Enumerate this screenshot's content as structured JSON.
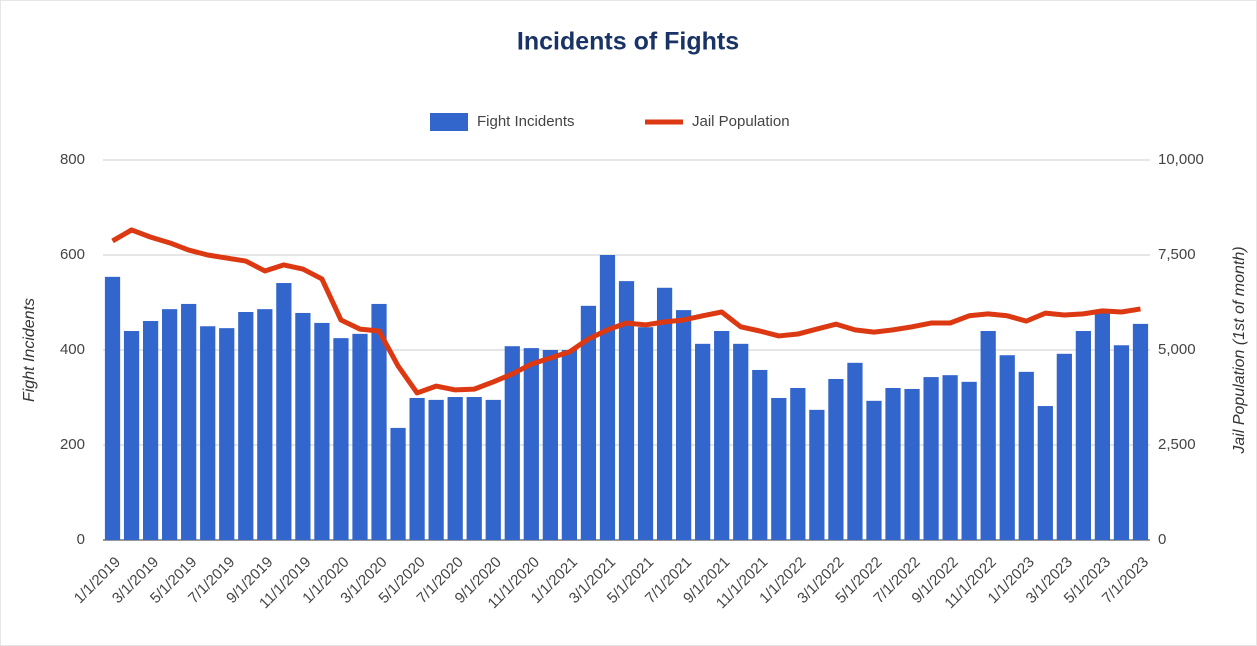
{
  "chart_data": {
    "type": "bar_line",
    "title": "Incidents of Fights",
    "categories": [
      "1/1/2019",
      null,
      "3/1/2019",
      null,
      "5/1/2019",
      null,
      "7/1/2019",
      null,
      "9/1/2019",
      null,
      "11/1/2019",
      null,
      "1/1/2020",
      null,
      "3/1/2020",
      null,
      "5/1/2020",
      null,
      "7/1/2020",
      null,
      "9/1/2020",
      null,
      "11/1/2020",
      null,
      "1/1/2021",
      null,
      "3/1/2021",
      null,
      "5/1/2021",
      null,
      "7/1/2021",
      null,
      "9/1/2021",
      null,
      "11/1/2021",
      null,
      "1/1/2022",
      null,
      "3/1/2022",
      null,
      "5/1/2022",
      null,
      "7/1/2022",
      null,
      "9/1/2022",
      null,
      "11/1/2022",
      null,
      "1/1/2023",
      null,
      "3/1/2023",
      null,
      "5/1/2023",
      null,
      "7/1/2023"
    ],
    "series": [
      {
        "name": "Fight Incidents",
        "color": "#3366cc",
        "type": "bar",
        "values": [
          554,
          440,
          461,
          486,
          497,
          450,
          446,
          480,
          486,
          541,
          478,
          457,
          425,
          434,
          497,
          236,
          299,
          295,
          301,
          301,
          295,
          408,
          404,
          400,
          400,
          493,
          600,
          545,
          448,
          531,
          484,
          413,
          440,
          413,
          358,
          299,
          320,
          274,
          339,
          373,
          293,
          320,
          318,
          343,
          347,
          333,
          440,
          389,
          354,
          282,
          392,
          440,
          478,
          410,
          455
        ]
      },
      {
        "name": "Jail Population",
        "color": "#dc3912",
        "type": "line",
        "axis": "y2",
        "values": [
          7870,
          8160,
          7970,
          7820,
          7630,
          7500,
          7420,
          7340,
          7080,
          7240,
          7130,
          6870,
          5790,
          5550,
          5500,
          4580,
          3870,
          4050,
          3950,
          3970,
          4160,
          4370,
          4630,
          4790,
          4950,
          5290,
          5530,
          5710,
          5660,
          5740,
          5790,
          5900,
          6000,
          5610,
          5500,
          5370,
          5420,
          5550,
          5680,
          5530,
          5470,
          5530,
          5610,
          5710,
          5710,
          5900,
          5950,
          5900,
          5760,
          5970,
          5920,
          5950,
          6030,
          6000,
          6080
        ]
      }
    ],
    "ylabel": "Fight Incidents",
    "y2label": "Jail Population (1st of month)",
    "ylim": [
      0,
      800
    ],
    "yticks": [
      0,
      200,
      400,
      600,
      800
    ],
    "y2lim": [
      0,
      10000
    ],
    "y2ticks": [
      0,
      {
        "value": 2500,
        "label": "2,500"
      },
      {
        "value": 5000,
        "label": "5,000"
      },
      {
        "value": 7500,
        "label": "7,500"
      },
      {
        "value": 10000,
        "label": "10,000"
      }
    ],
    "grid": true,
    "legend": "top"
  }
}
